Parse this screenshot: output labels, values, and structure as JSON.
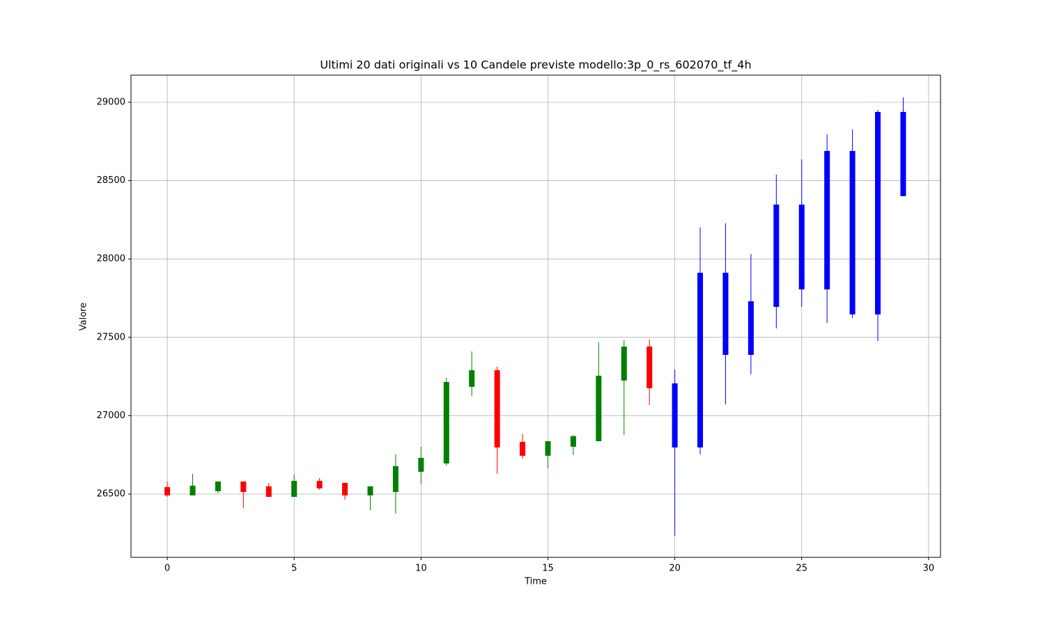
{
  "chart_data": {
    "type": "candlestick",
    "title": "Ultimi 20 dati originali vs 10 Candele previste modello:3p_0_rs_602070_tf_4h",
    "x_label": "Time",
    "y_label": "Valore",
    "x": [
      0,
      1,
      2,
      3,
      4,
      5,
      6,
      7,
      8,
      9,
      10,
      11,
      12,
      13,
      14,
      15,
      16,
      17,
      18,
      19,
      20,
      21,
      22,
      23,
      24,
      25,
      26,
      27,
      28,
      29
    ],
    "open": [
      26544,
      26491,
      26518,
      26580,
      26549,
      26482,
      26584,
      26571,
      26491,
      26513,
      26642,
      26695,
      27184,
      27290,
      26833,
      26744,
      26802,
      26837,
      27224,
      27441,
      27206,
      26797,
      27912,
      27388,
      27694,
      28347,
      27806,
      28689,
      27646,
      28938
    ],
    "high": [
      26580,
      26629,
      26580,
      26580,
      26571,
      26624,
      26602,
      26571,
      26549,
      26753,
      26802,
      27242,
      27410,
      27313,
      26882,
      26837,
      26877,
      27468,
      27481,
      27486,
      27295,
      28201,
      28227,
      28032,
      28538,
      28636,
      28796,
      28827,
      28951,
      29031
    ],
    "low": [
      26482,
      26491,
      26504,
      26411,
      26482,
      26482,
      26527,
      26464,
      26398,
      26376,
      26562,
      26682,
      27126,
      26629,
      26726,
      26664,
      26749,
      26837,
      26877,
      27068,
      26234,
      26753,
      27073,
      27264,
      27557,
      27694,
      27592,
      27623,
      27477,
      28401
    ],
    "close": [
      26491,
      26553,
      26580,
      26513,
      26482,
      26584,
      26536,
      26491,
      26549,
      26678,
      26731,
      27215,
      27290,
      26797,
      26744,
      26837,
      26869,
      27255,
      27441,
      27175,
      26797,
      27912,
      27388,
      27730,
      28347,
      27806,
      28689,
      27646,
      28938,
      28401
    ],
    "colors": [
      "#ff0000",
      "#008000",
      "#008000",
      "#ff0000",
      "#ff0000",
      "#008000",
      "#ff0000",
      "#ff0000",
      "#008000",
      "#008000",
      "#008000",
      "#008000",
      "#008000",
      "#ff0000",
      "#ff0000",
      "#008000",
      "#008000",
      "#008000",
      "#008000",
      "#ff0000",
      "#0000ff",
      "#0000ff",
      "#0000ff",
      "#0000ff",
      "#0000ff",
      "#0000ff",
      "#0000ff",
      "#0000ff",
      "#0000ff",
      "#0000ff"
    ],
    "xlim": [
      -1.43,
      30.47
    ],
    "xticks": [
      0,
      5,
      10,
      15,
      20,
      25,
      30
    ],
    "ylim": [
      26096,
      29173
    ],
    "yticks": [
      26500,
      27000,
      27500,
      28000,
      28500,
      29000
    ],
    "grid": true
  }
}
